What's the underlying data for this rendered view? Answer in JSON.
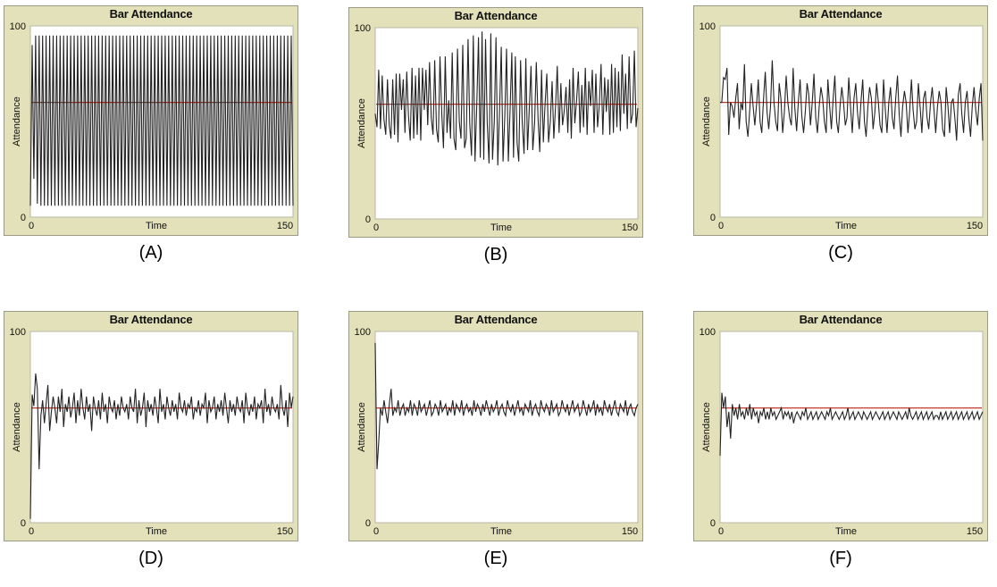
{
  "chart_data": [
    {
      "type": "line",
      "caption": "(A)",
      "title": "Bar Attendance",
      "xlabel": "Time",
      "ylabel": "Attendance",
      "xlim": [
        0,
        150
      ],
      "ylim": [
        0,
        100
      ],
      "xticks": [
        "0",
        "150"
      ],
      "yticks": [
        "0",
        "100"
      ],
      "reference_line": {
        "y": 60,
        "color": "#c0392b"
      },
      "series": [
        {
          "color": "#222222",
          "values": [
            6,
            90,
            20,
            95,
            7,
            95,
            6,
            95,
            6,
            95,
            6,
            95,
            6,
            95,
            6,
            95,
            6,
            95,
            6,
            95,
            6,
            95,
            6,
            95,
            6,
            95,
            6,
            95,
            6,
            95,
            6,
            95,
            6,
            95,
            6,
            95,
            6,
            95,
            6,
            95,
            6,
            95,
            6,
            95,
            6,
            95,
            6,
            95,
            6,
            95,
            6,
            95,
            6,
            95,
            6,
            95,
            6,
            95,
            6,
            95,
            6,
            95,
            6,
            95,
            6,
            95,
            6,
            95,
            6,
            95,
            6,
            95,
            6,
            95,
            6,
            95,
            6,
            95,
            6,
            95,
            6,
            95,
            6,
            95,
            6,
            95,
            6,
            95,
            6,
            95,
            6,
            95,
            6,
            95,
            6,
            95,
            6,
            95,
            6,
            95,
            6,
            95,
            6,
            95,
            6,
            95,
            6,
            95,
            6,
            95,
            6,
            95,
            6,
            95,
            6,
            95,
            6,
            95,
            6,
            95,
            6,
            95,
            6,
            95,
            6,
            95,
            6,
            95,
            6,
            95,
            6,
            95,
            6,
            95,
            6,
            95,
            6,
            95,
            6,
            95,
            6,
            95,
            6,
            95,
            6,
            95,
            6,
            95,
            6,
            95,
            6
          ]
        }
      ]
    },
    {
      "type": "line",
      "caption": "(B)",
      "title": "Bar Attendance",
      "xlabel": "Time",
      "ylabel": "Attendance",
      "xlim": [
        0,
        150
      ],
      "ylim": [
        0,
        100
      ],
      "xticks": [
        "0",
        "150"
      ],
      "yticks": [
        "0",
        "100"
      ],
      "reference_line": {
        "y": 60,
        "color": "#c0392b"
      },
      "series": [
        {
          "color": "#222222",
          "values": [
            55,
            48,
            78,
            47,
            75,
            52,
            44,
            73,
            49,
            42,
            73,
            44,
            76,
            40,
            76,
            57,
            73,
            45,
            77,
            54,
            41,
            79,
            42,
            75,
            44,
            79,
            41,
            79,
            57,
            78,
            49,
            82,
            53,
            44,
            83,
            47,
            40,
            85,
            55,
            37,
            85,
            45,
            62,
            42,
            87,
            42,
            36,
            89,
            51,
            42,
            91,
            37,
            42,
            94,
            50,
            33,
            96,
            30,
            60,
            95,
            32,
            98,
            31,
            94,
            50,
            29,
            97,
            31,
            51,
            95,
            28,
            57,
            90,
            30,
            53,
            89,
            30,
            56,
            87,
            32,
            85,
            40,
            30,
            83,
            50,
            34,
            84,
            36,
            58,
            80,
            36,
            50,
            82,
            52,
            35,
            78,
            40,
            60,
            76,
            40,
            51,
            72,
            42,
            59,
            80,
            45,
            71,
            49,
            57,
            69,
            45,
            73,
            42,
            79,
            50,
            62,
            77,
            45,
            70,
            48,
            79,
            44,
            72,
            59,
            78,
            45,
            76,
            48,
            60,
            81,
            44,
            74,
            56,
            73,
            44,
            81,
            45,
            79,
            48,
            77,
            46,
            86,
            55,
            76,
            47,
            85,
            50,
            55,
            88,
            48,
            58
          ]
        }
      ]
    },
    {
      "type": "line",
      "caption": "(C)",
      "title": "Bar Attendance",
      "xlabel": "Time",
      "ylabel": "Attendance",
      "xlim": [
        0,
        150
      ],
      "ylim": [
        0,
        100
      ],
      "xticks": [
        "0",
        "150"
      ],
      "yticks": [
        "0",
        "100"
      ],
      "reference_line": {
        "y": 60,
        "color": "#c0392b"
      },
      "series": [
        {
          "color": "#222222",
          "values": [
            60,
            60,
            73,
            72,
            78,
            43,
            60,
            58,
            52,
            62,
            70,
            46,
            60,
            56,
            80,
            50,
            42,
            55,
            70,
            58,
            48,
            59,
            72,
            50,
            44,
            62,
            76,
            55,
            46,
            58,
            82,
            60,
            50,
            45,
            70,
            62,
            44,
            55,
            74,
            60,
            52,
            48,
            78,
            57,
            45,
            60,
            72,
            53,
            44,
            55,
            70,
            64,
            48,
            60,
            75,
            52,
            44,
            58,
            68,
            62,
            50,
            44,
            72,
            58,
            46,
            62,
            74,
            50,
            44,
            58,
            68,
            60,
            48,
            52,
            73,
            58,
            44,
            62,
            70,
            55,
            46,
            60,
            72,
            50,
            42,
            58,
            68,
            62,
            46,
            55,
            70,
            60,
            48,
            44,
            72,
            56,
            44,
            60,
            68,
            52,
            46,
            62,
            74,
            54,
            42,
            58,
            66,
            60,
            44,
            55,
            72,
            56,
            46,
            50,
            70,
            58,
            44,
            62,
            66,
            52,
            46,
            60,
            68,
            56,
            44,
            58,
            66,
            60,
            46,
            42,
            68,
            58,
            44,
            60,
            62,
            52,
            40,
            64,
            70,
            54,
            44,
            60,
            66,
            52,
            42,
            58,
            68,
            56,
            48,
            62,
            70,
            40
          ]
        }
      ]
    },
    {
      "type": "line",
      "caption": "(D)",
      "title": "Bar Attendance",
      "xlabel": "Time",
      "ylabel": "Attendance",
      "xlim": [
        0,
        150
      ],
      "ylim": [
        0,
        100
      ],
      "xticks": [
        "0",
        "150"
      ],
      "yticks": [
        "0",
        "100"
      ],
      "reference_line": {
        "y": 60,
        "color": "#c0392b"
      },
      "series": [
        {
          "color": "#222222",
          "values": [
            2,
            67,
            61,
            78,
            70,
            28,
            56,
            64,
            52,
            62,
            72,
            48,
            58,
            66,
            60,
            52,
            66,
            58,
            70,
            50,
            62,
            58,
            66,
            55,
            60,
            68,
            52,
            64,
            56,
            70,
            60,
            54,
            66,
            58,
            62,
            48,
            66,
            60,
            56,
            64,
            54,
            68,
            58,
            62,
            52,
            66,
            60,
            58,
            64,
            54,
            62,
            56,
            66,
            60,
            58,
            62,
            54,
            66,
            60,
            58,
            70,
            52,
            64,
            56,
            60,
            68,
            50,
            64,
            58,
            62,
            56,
            66,
            60,
            52,
            70,
            58,
            62,
            54,
            66,
            60,
            56,
            64,
            58,
            62,
            54,
            68,
            60,
            58,
            64,
            56,
            62,
            60,
            66,
            54,
            60,
            58,
            64,
            56,
            62,
            60,
            68,
            52,
            64,
            58,
            60,
            66,
            54,
            62,
            58,
            64,
            56,
            68,
            60,
            52,
            64,
            58,
            62,
            56,
            66,
            60,
            58,
            64,
            52,
            68,
            60,
            56,
            62,
            58,
            66,
            54,
            62,
            60,
            64,
            52,
            70,
            58,
            62,
            56,
            66,
            60,
            58,
            62,
            54,
            72,
            60,
            56,
            64,
            50,
            68,
            60,
            66
          ]
        }
      ]
    },
    {
      "type": "line",
      "caption": "(E)",
      "title": "Bar Attendance",
      "xlabel": "Time",
      "ylabel": "Attendance",
      "xlim": [
        0,
        150
      ],
      "ylim": [
        0,
        100
      ],
      "xticks": [
        "0",
        "150"
      ],
      "yticks": [
        "0",
        "100"
      ],
      "reference_line": {
        "y": 60,
        "color": "#c0392b"
      },
      "series": [
        {
          "color": "#222222",
          "values": [
            94,
            28,
            42,
            60,
            56,
            64,
            58,
            52,
            62,
            70,
            56,
            60,
            58,
            64,
            56,
            60,
            62,
            56,
            60,
            58,
            64,
            56,
            62,
            60,
            56,
            64,
            58,
            60,
            62,
            56,
            60,
            64,
            56,
            58,
            62,
            60,
            56,
            64,
            58,
            60,
            62,
            56,
            60,
            58,
            64,
            56,
            62,
            60,
            58,
            64,
            56,
            60,
            62,
            58,
            60,
            56,
            64,
            58,
            62,
            60,
            56,
            62,
            58,
            64,
            60,
            56,
            62,
            58,
            60,
            64,
            56,
            60,
            62,
            58,
            56,
            64,
            60,
            58,
            62,
            56,
            60,
            64,
            58,
            60,
            56,
            62,
            60,
            58,
            64,
            56,
            60,
            62,
            58,
            56,
            64,
            60,
            58,
            62,
            60,
            56,
            64,
            58,
            60,
            62,
            56,
            58,
            64,
            60,
            58,
            62,
            56,
            60,
            64,
            58,
            60,
            62,
            56,
            58,
            64,
            60,
            56,
            62,
            58,
            60,
            64,
            56,
            62,
            58,
            60,
            56,
            64,
            60,
            58,
            62,
            56,
            60,
            64,
            58,
            56,
            62,
            60,
            58,
            64,
            56,
            60,
            62,
            58,
            56,
            60,
            62
          ]
        }
      ]
    },
    {
      "type": "line",
      "caption": "(F)",
      "title": "Bar Attendance",
      "xlabel": "Time",
      "ylabel": "Attendance",
      "xlim": [
        0,
        150
      ],
      "ylim": [
        0,
        100
      ],
      "xticks": [
        "0",
        "150"
      ],
      "yticks": [
        "0",
        "100"
      ],
      "reference_line": {
        "y": 60,
        "color": "#c0392b"
      },
      "series": [
        {
          "color": "#222222",
          "values": [
            35,
            68,
            60,
            66,
            50,
            58,
            44,
            62,
            56,
            60,
            54,
            62,
            56,
            58,
            54,
            60,
            56,
            62,
            54,
            60,
            56,
            58,
            52,
            58,
            56,
            60,
            54,
            58,
            54,
            60,
            56,
            58,
            54,
            56,
            58,
            60,
            54,
            58,
            56,
            58,
            54,
            58,
            52,
            56,
            58,
            56,
            54,
            58,
            56,
            60,
            54,
            56,
            58,
            54,
            56,
            58,
            54,
            56,
            58,
            56,
            54,
            58,
            56,
            60,
            54,
            56,
            58,
            56,
            54,
            56,
            58,
            54,
            56,
            60,
            54,
            56,
            58,
            54,
            56,
            58,
            56,
            54,
            58,
            56,
            54,
            56,
            58,
            54,
            56,
            58,
            56,
            54,
            56,
            58,
            54,
            56,
            58,
            54,
            56,
            58,
            56,
            54,
            58,
            56,
            54,
            56,
            58,
            54,
            60,
            56,
            54,
            56,
            58,
            54,
            56,
            58,
            54,
            56,
            58,
            54,
            56,
            58,
            54,
            56,
            56,
            54,
            58,
            54,
            56,
            58,
            54,
            56,
            58,
            54,
            56,
            58,
            54,
            56,
            58,
            54,
            56,
            58,
            54,
            56,
            58,
            54,
            56,
            58,
            54,
            56,
            58
          ]
        }
      ]
    }
  ]
}
